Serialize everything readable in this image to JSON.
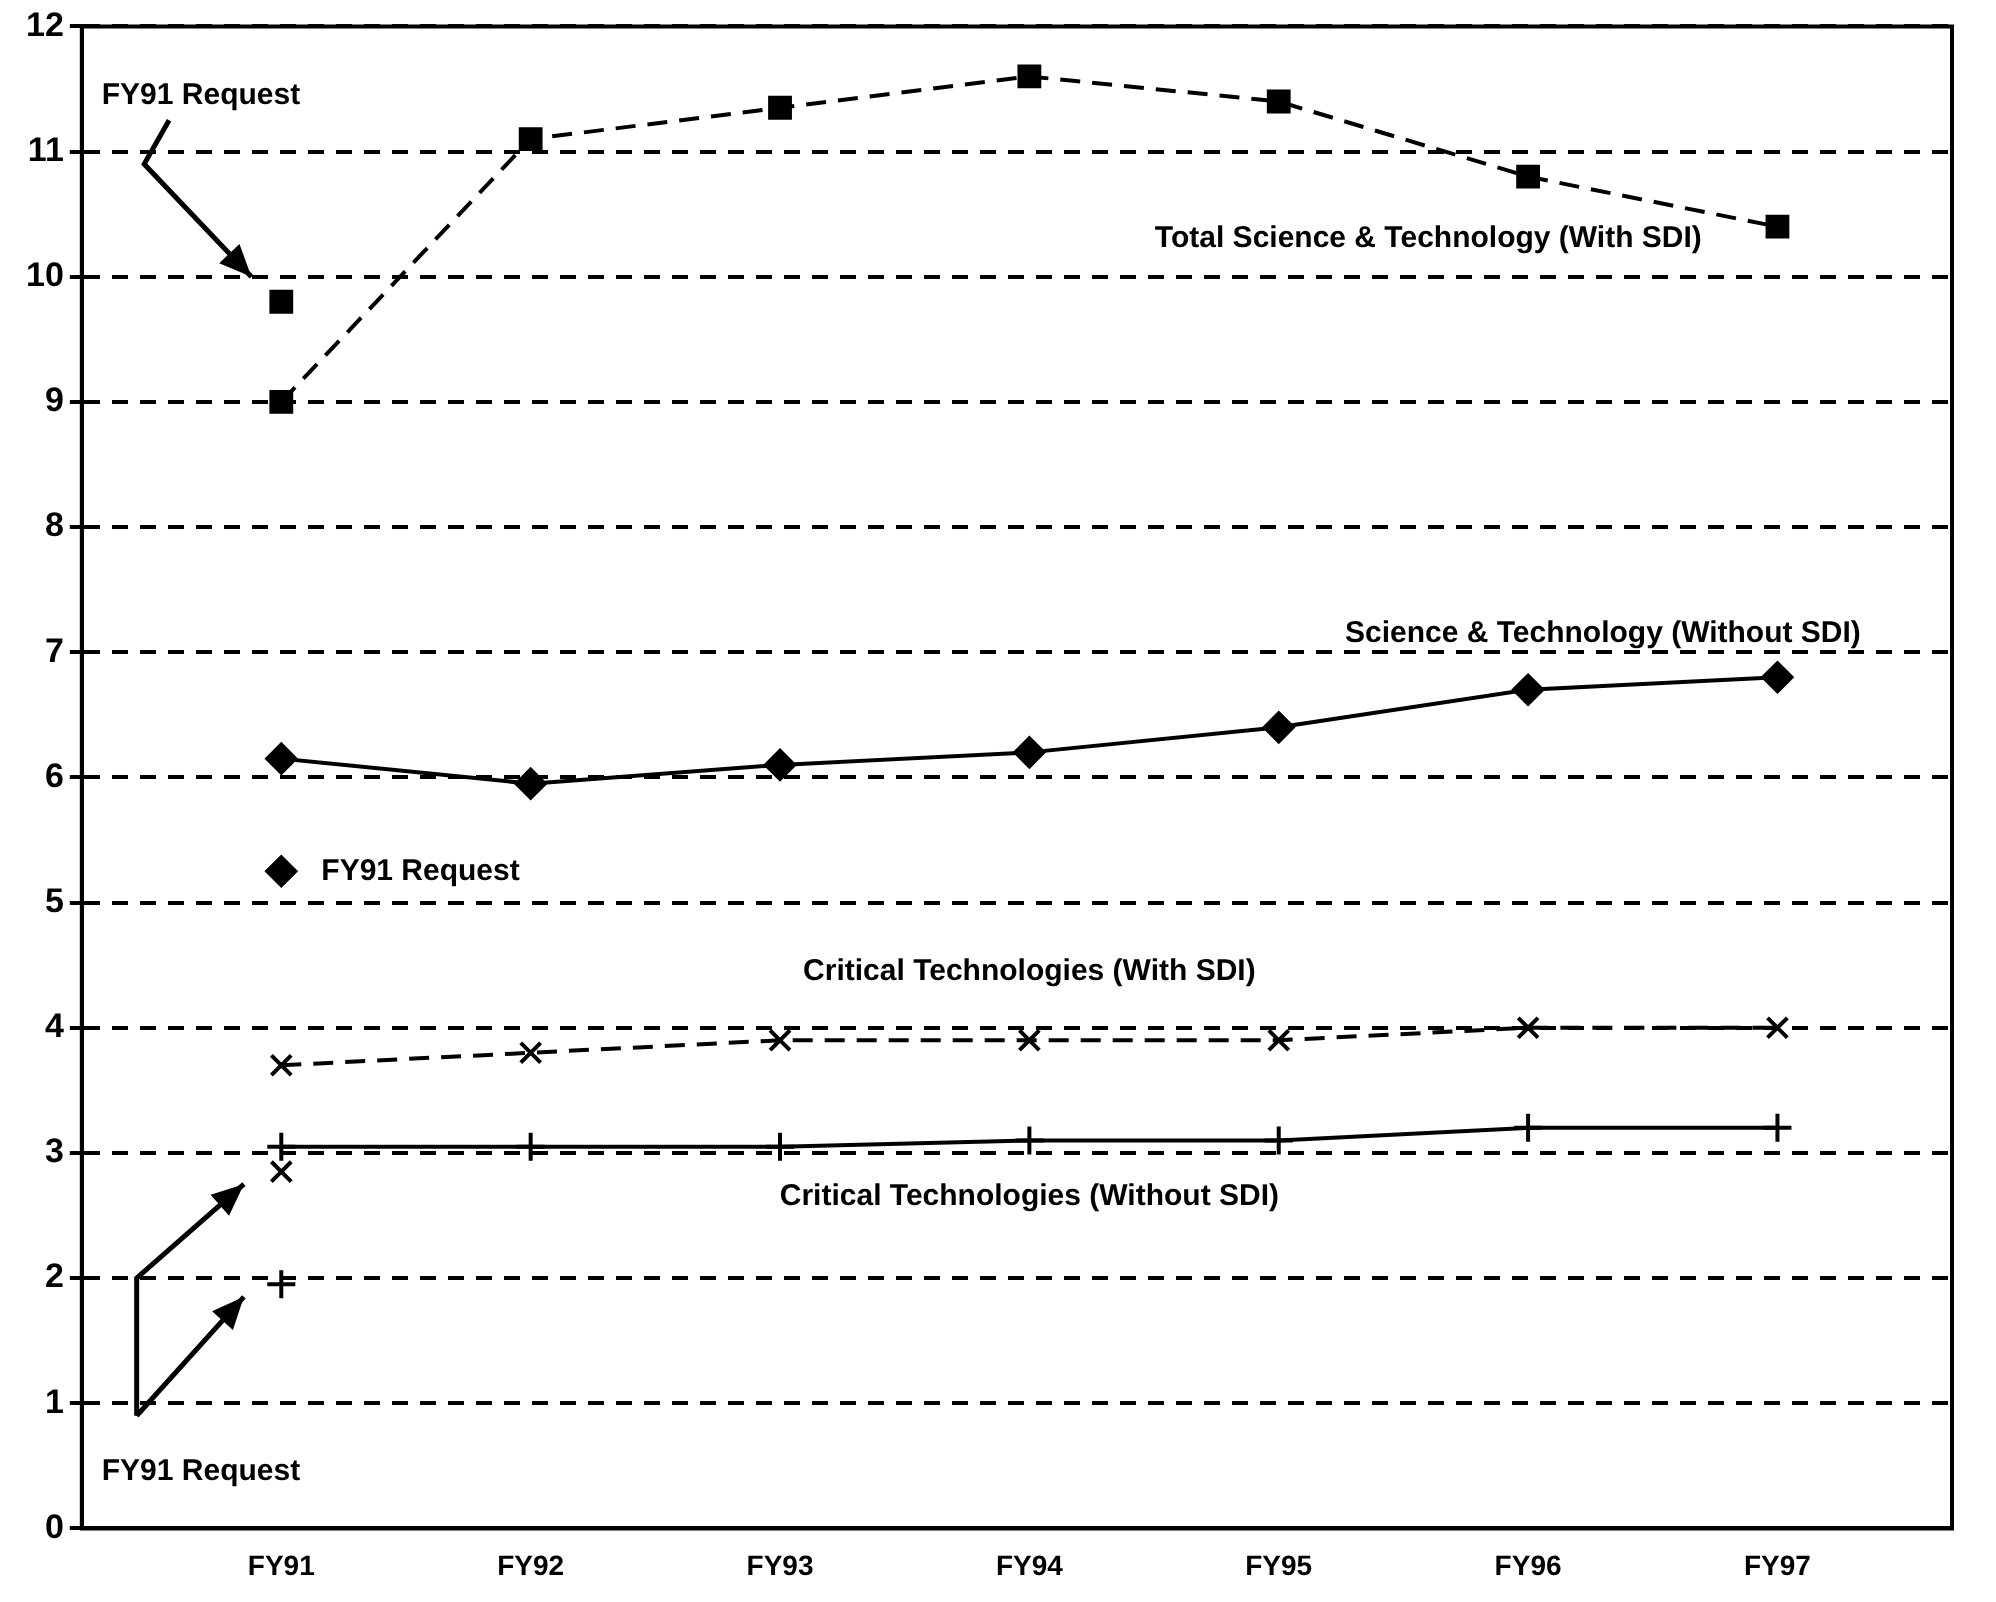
{
  "chart_data": {
    "type": "line",
    "categories": [
      "FY91",
      "FY92",
      "FY93",
      "FY94",
      "FY95",
      "FY96",
      "FY97"
    ],
    "series": [
      {
        "name": "Total Science & Technology (With SDI)",
        "color": "#000000",
        "values": [
          9.0,
          11.1,
          11.35,
          11.6,
          11.4,
          10.8,
          10.4
        ],
        "marker": "square",
        "line_style": "dashed"
      },
      {
        "name": "Science & Technology (Without SDI)",
        "color": "#000000",
        "values": [
          6.15,
          5.95,
          6.1,
          6.2,
          6.4,
          6.7,
          6.8
        ],
        "marker": "diamond",
        "line_style": "solid"
      },
      {
        "name": "Critical Technologies (With SDI)",
        "color": "#000000",
        "values": [
          3.7,
          3.8,
          3.9,
          3.9,
          3.9,
          4.0,
          4.0
        ],
        "marker": "cross",
        "line_style": "dashed"
      },
      {
        "name": "Critical Technologies (Without SDI)",
        "color": "#000000",
        "values": [
          3.05,
          3.05,
          3.05,
          3.1,
          3.1,
          3.2,
          3.2
        ],
        "marker": "cross",
        "line_style": "solid"
      },
      {
        "type": "scatter",
        "color": "#000000",
        "x": [
          "FY91"
        ],
        "values": [
          9.8
        ],
        "marker": "square"
      },
      {
        "type": "scatter",
        "color": "#000000",
        "x": [
          "FY91"
        ],
        "values": [
          5.25
        ],
        "marker": "diamond"
      },
      {
        "type": "scatter",
        "color": "#000000",
        "x": [
          "FY91"
        ],
        "values": [
          2.85
        ],
        "marker": "cross"
      },
      {
        "type": "scatter",
        "color": "#000000",
        "x": [
          "FY91"
        ],
        "values": [
          1.95
        ],
        "marker": "cross"
      }
    ],
    "ylim": [
      0,
      12
    ],
    "yticks": [
      0,
      1,
      2,
      3,
      4,
      5,
      6,
      7,
      8,
      9,
      10,
      11,
      12
    ],
    "grid": "y",
    "legend": false,
    "annotations": [
      "FY91 Request",
      {
        "text": "FY91 Request",
        "x": "FY91",
        "y": 5.25
      },
      "FY91 Request"
    ]
  }
}
